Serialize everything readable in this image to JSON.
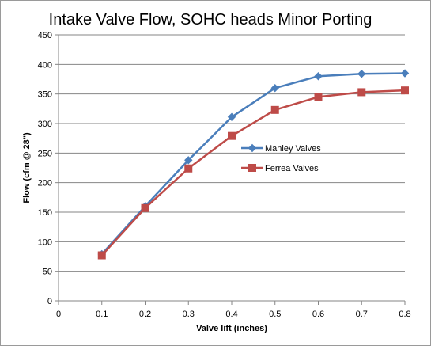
{
  "chart_data": {
    "type": "line",
    "title": "Intake Valve Flow, SOHC heads Minor Porting",
    "xlabel": "Valve lift (inches)",
    "ylabel": "Flow (cfm @ 28\")",
    "xlim": [
      0,
      0.8
    ],
    "ylim": [
      0,
      450
    ],
    "x_ticks": [
      "0",
      "0.1",
      "0.2",
      "0.3",
      "0.4",
      "0.5",
      "0.6",
      "0.7",
      "0.8"
    ],
    "y_ticks": [
      "0",
      "50",
      "100",
      "150",
      "200",
      "250",
      "300",
      "350",
      "400",
      "450"
    ],
    "x": [
      0.1,
      0.2,
      0.3,
      0.4,
      0.5,
      0.6,
      0.7,
      0.8
    ],
    "series": [
      {
        "name": "Manley Valves",
        "values": [
          79,
          160,
          238,
          311,
          360,
          380,
          384,
          385
        ],
        "color": "#4a7ebb",
        "marker": "diamond"
      },
      {
        "name": "Ferrea Valves",
        "values": [
          77,
          157,
          224,
          279,
          323,
          345,
          353,
          356
        ],
        "color": "#be4b48",
        "marker": "square"
      }
    ],
    "grid": "horizontal",
    "legend_position": "center-right"
  }
}
